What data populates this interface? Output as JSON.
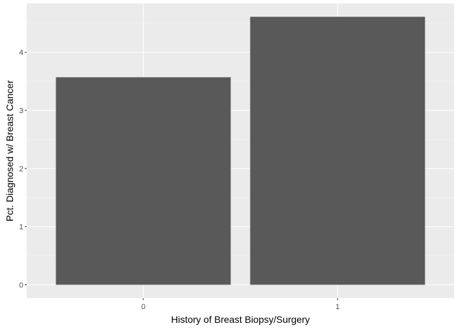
{
  "colors": {
    "panel_background": "#ebebeb",
    "grid_major": "#ffffff",
    "grid_minor": "#f5f5f5",
    "bar_fill": "#595959",
    "tick_mark": "#333333"
  },
  "chart_data": {
    "type": "bar",
    "categories": [
      "0",
      "1"
    ],
    "values": [
      3.57,
      4.61
    ],
    "xlabel": "History of Breast Biopsy/Surgery",
    "ylabel": "Pct. Diagnosed w/ Breast Cancer",
    "ylim": [
      -0.23,
      4.84
    ],
    "yticks": [
      0,
      1,
      2,
      3,
      4
    ],
    "grid": true,
    "legend": "none"
  }
}
